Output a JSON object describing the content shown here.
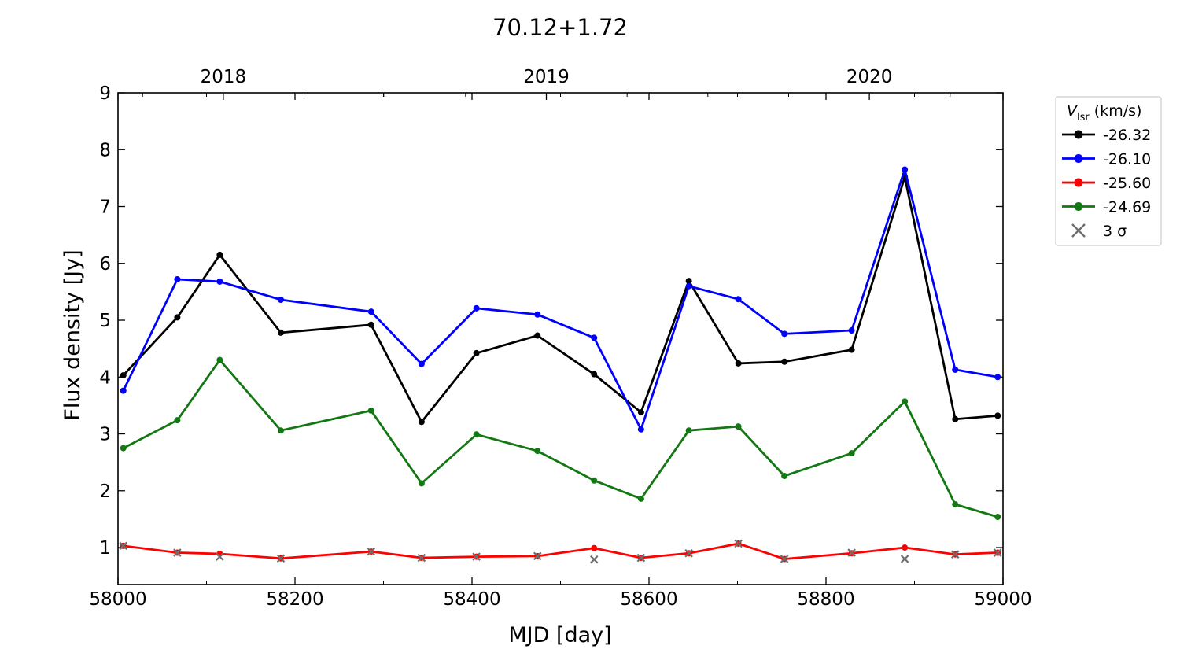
{
  "chart_data": {
    "type": "line",
    "title": "70.12+1.72",
    "xlabel": "MJD [day]",
    "ylabel": "Flux density [Jy]",
    "xlim": [
      58000,
      59000
    ],
    "ylim": [
      0.35,
      9
    ],
    "x_ticks": [
      58000,
      58200,
      58400,
      58600,
      58800,
      59000
    ],
    "y_ticks": [
      1,
      2,
      3,
      4,
      5,
      6,
      7,
      8,
      9
    ],
    "top_axis": {
      "labels": [
        {
          "text": "2018",
          "mjd": 58119
        },
        {
          "text": "2019",
          "mjd": 58484
        },
        {
          "text": "2020",
          "mjd": 58849
        }
      ]
    },
    "legend": {
      "title_var": "V",
      "title_sub": "lsr",
      "title_unit": " (km/s)",
      "placement": "outside-right-top",
      "sigma_label": "3 σ"
    },
    "x": [
      58006,
      58067,
      58115,
      58184,
      58286,
      58343,
      58405,
      58474,
      58538,
      58591,
      58645,
      58701,
      58753,
      58829,
      58889,
      58946,
      58994
    ],
    "series": [
      {
        "name": "-26.32",
        "color": "#000000",
        "values": [
          4.03,
          5.05,
          6.15,
          4.78,
          4.92,
          3.21,
          4.42,
          4.73,
          4.05,
          3.38,
          5.69,
          4.24,
          4.27,
          4.48,
          7.52,
          3.26,
          3.32
        ]
      },
      {
        "name": "-26.10",
        "color": "#0000ff",
        "values": [
          3.76,
          5.72,
          5.68,
          5.36,
          5.15,
          4.23,
          5.21,
          5.1,
          4.69,
          3.08,
          5.6,
          5.37,
          4.76,
          4.82,
          7.65,
          4.13,
          4.0
        ]
      },
      {
        "name": "-25.60",
        "color": "#ff0000",
        "values": [
          1.03,
          0.91,
          0.89,
          0.81,
          0.93,
          0.82,
          0.84,
          0.85,
          0.99,
          0.82,
          0.9,
          1.07,
          0.8,
          0.9,
          1.0,
          0.88,
          0.91
        ]
      },
      {
        "name": "-24.69",
        "color": "#137713",
        "values": [
          2.75,
          3.24,
          4.3,
          3.06,
          3.41,
          2.13,
          2.99,
          2.7,
          2.18,
          1.86,
          3.06,
          3.13,
          2.26,
          2.66,
          3.57,
          1.76,
          1.54
        ]
      }
    ],
    "sigma3": {
      "color": "#6f6f6f",
      "values": [
        1.03,
        0.91,
        0.84,
        0.81,
        0.93,
        0.82,
        0.84,
        0.85,
        0.79,
        0.82,
        0.9,
        1.07,
        0.8,
        0.91,
        0.8,
        0.88,
        0.91
      ]
    }
  }
}
